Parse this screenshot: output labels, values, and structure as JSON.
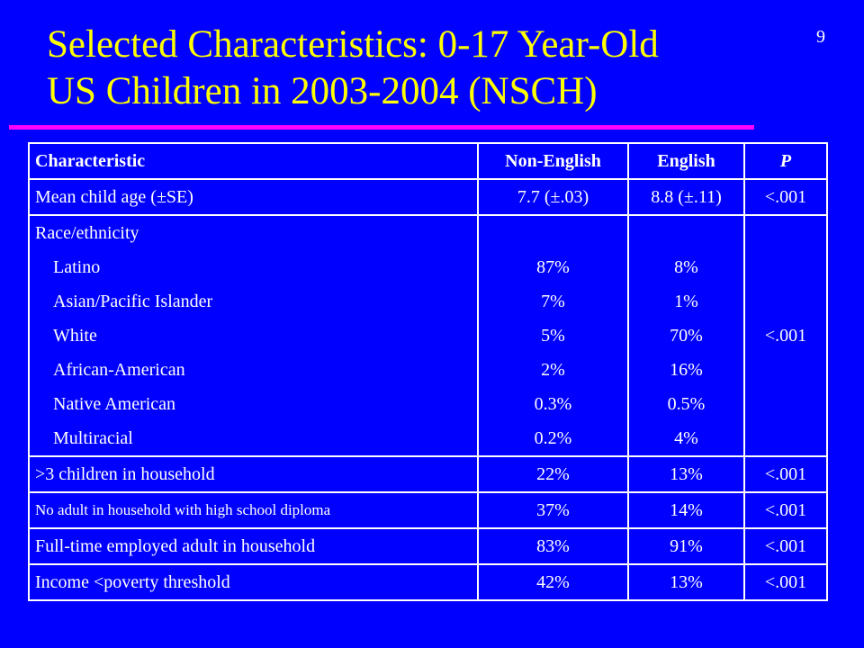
{
  "slide_number": "9",
  "title": {
    "line1": "Selected Characteristics: 0-17 Year-Old",
    "line2": "US Children in 2003-2004 (NSCH)"
  },
  "colors": {
    "background": "#0000ff",
    "title": "#ffff00",
    "rule": "#ff00ff",
    "text": "#ffffff"
  },
  "table": {
    "headers": {
      "characteristic": "Characteristic",
      "non_english": "Non-English",
      "english": "English",
      "p": "P"
    },
    "rows": [
      {
        "label": "Mean child age (±SE)",
        "non_english": "7.7 (±.03)",
        "english": "8.8 (±.11)",
        "p": "<.001"
      },
      {
        "label": ">3 children in household",
        "non_english": "22%",
        "english": "13%",
        "p": "<.001"
      },
      {
        "label": "No adult in household with high school diploma",
        "non_english": "37%",
        "english": "14%",
        "p": "<.001"
      },
      {
        "label": "Full-time employed adult in household",
        "non_english": "83%",
        "english": "91%",
        "p": "<.001"
      },
      {
        "label": "Income <poverty threshold",
        "non_english": "42%",
        "english": "13%",
        "p": "<.001"
      }
    ],
    "race": {
      "label": "Race/ethnicity",
      "p": "<.001",
      "groups": [
        {
          "name": "Latino",
          "non_english": "87%",
          "english": "8%"
        },
        {
          "name": "Asian/Pacific Islander",
          "non_english": "7%",
          "english": "1%"
        },
        {
          "name": "White",
          "non_english": "5%",
          "english": "70%"
        },
        {
          "name": "African-American",
          "non_english": "2%",
          "english": "16%"
        },
        {
          "name": "Native American",
          "non_english": "0.3%",
          "english": "0.5%"
        },
        {
          "name": "Multiracial",
          "non_english": "0.2%",
          "english": "4%"
        }
      ]
    }
  }
}
